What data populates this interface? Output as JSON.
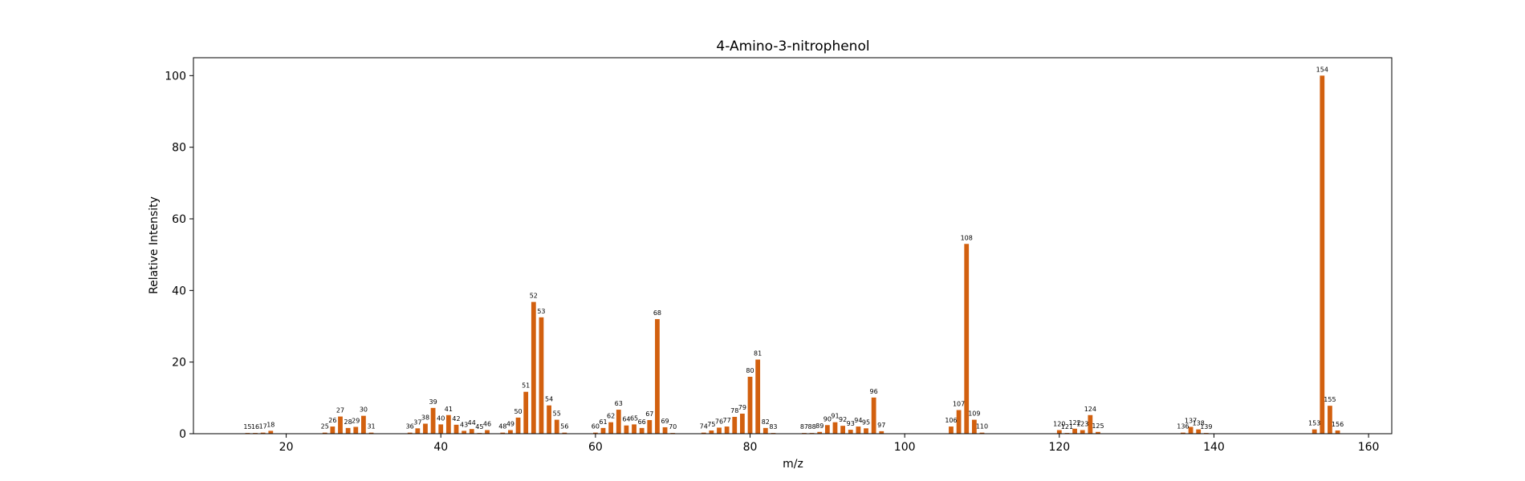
{
  "chart_data": {
    "type": "bar",
    "title": "4-Amino-3-nitrophenol",
    "xlabel": "m/z",
    "ylabel": "Relative Intensity",
    "xlim": [
      8,
      163
    ],
    "ylim": [
      0,
      105
    ],
    "xticks": [
      20,
      40,
      60,
      80,
      100,
      120,
      140,
      160
    ],
    "yticks": [
      0,
      20,
      40,
      60,
      80,
      100
    ],
    "color": "#d2600f",
    "grid": false,
    "legend": "none",
    "peaks": [
      {
        "mz": 15,
        "intensity": 0.2
      },
      {
        "mz": 16,
        "intensity": 0.2
      },
      {
        "mz": 17,
        "intensity": 0.3
      },
      {
        "mz": 18,
        "intensity": 0.8
      },
      {
        "mz": 25,
        "intensity": 0.3
      },
      {
        "mz": 26,
        "intensity": 2.0
      },
      {
        "mz": 27,
        "intensity": 4.8
      },
      {
        "mz": 28,
        "intensity": 1.6
      },
      {
        "mz": 29,
        "intensity": 1.9
      },
      {
        "mz": 30,
        "intensity": 5.0
      },
      {
        "mz": 31,
        "intensity": 0.3
      },
      {
        "mz": 36,
        "intensity": 0.3
      },
      {
        "mz": 37,
        "intensity": 1.5
      },
      {
        "mz": 38,
        "intensity": 2.8
      },
      {
        "mz": 39,
        "intensity": 7.2
      },
      {
        "mz": 40,
        "intensity": 2.6
      },
      {
        "mz": 41,
        "intensity": 5.2
      },
      {
        "mz": 42,
        "intensity": 2.5
      },
      {
        "mz": 43,
        "intensity": 0.8
      },
      {
        "mz": 44,
        "intensity": 1.3
      },
      {
        "mz": 45,
        "intensity": 0.2
      },
      {
        "mz": 46,
        "intensity": 1.0
      },
      {
        "mz": 48,
        "intensity": 0.3
      },
      {
        "mz": 49,
        "intensity": 1.0
      },
      {
        "mz": 50,
        "intensity": 4.5
      },
      {
        "mz": 51,
        "intensity": 11.7
      },
      {
        "mz": 52,
        "intensity": 36.8
      },
      {
        "mz": 53,
        "intensity": 32.5
      },
      {
        "mz": 54,
        "intensity": 7.9
      },
      {
        "mz": 55,
        "intensity": 3.9
      },
      {
        "mz": 56,
        "intensity": 0.3
      },
      {
        "mz": 60,
        "intensity": 0.3
      },
      {
        "mz": 61,
        "intensity": 1.6
      },
      {
        "mz": 62,
        "intensity": 3.2
      },
      {
        "mz": 63,
        "intensity": 6.7
      },
      {
        "mz": 64,
        "intensity": 2.3
      },
      {
        "mz": 65,
        "intensity": 2.6
      },
      {
        "mz": 66,
        "intensity": 1.6
      },
      {
        "mz": 67,
        "intensity": 3.8
      },
      {
        "mz": 68,
        "intensity": 32.0
      },
      {
        "mz": 69,
        "intensity": 1.8
      },
      {
        "mz": 70,
        "intensity": 0.2
      },
      {
        "mz": 74,
        "intensity": 0.3
      },
      {
        "mz": 75,
        "intensity": 0.9
      },
      {
        "mz": 76,
        "intensity": 1.7
      },
      {
        "mz": 77,
        "intensity": 2.0
      },
      {
        "mz": 78,
        "intensity": 4.7
      },
      {
        "mz": 79,
        "intensity": 5.6
      },
      {
        "mz": 80,
        "intensity": 15.9
      },
      {
        "mz": 81,
        "intensity": 20.7
      },
      {
        "mz": 82,
        "intensity": 1.6
      },
      {
        "mz": 83,
        "intensity": 0.2
      },
      {
        "mz": 87,
        "intensity": 0.2
      },
      {
        "mz": 88,
        "intensity": 0.2
      },
      {
        "mz": 89,
        "intensity": 0.5
      },
      {
        "mz": 90,
        "intensity": 2.4
      },
      {
        "mz": 91,
        "intensity": 3.2
      },
      {
        "mz": 92,
        "intensity": 2.2
      },
      {
        "mz": 93,
        "intensity": 1.1
      },
      {
        "mz": 94,
        "intensity": 2.0
      },
      {
        "mz": 95,
        "intensity": 1.5
      },
      {
        "mz": 96,
        "intensity": 10.1
      },
      {
        "mz": 97,
        "intensity": 0.7
      },
      {
        "mz": 106,
        "intensity": 2.0
      },
      {
        "mz": 107,
        "intensity": 6.6
      },
      {
        "mz": 108,
        "intensity": 53.0
      },
      {
        "mz": 109,
        "intensity": 3.9
      },
      {
        "mz": 110,
        "intensity": 0.3
      },
      {
        "mz": 120,
        "intensity": 1.0
      },
      {
        "mz": 121,
        "intensity": 0.2
      },
      {
        "mz": 122,
        "intensity": 1.4
      },
      {
        "mz": 123,
        "intensity": 1.0
      },
      {
        "mz": 124,
        "intensity": 5.2
      },
      {
        "mz": 125,
        "intensity": 0.5
      },
      {
        "mz": 136,
        "intensity": 0.3
      },
      {
        "mz": 137,
        "intensity": 1.9
      },
      {
        "mz": 138,
        "intensity": 1.2
      },
      {
        "mz": 139,
        "intensity": 0.2
      },
      {
        "mz": 153,
        "intensity": 1.2
      },
      {
        "mz": 154,
        "intensity": 100.0
      },
      {
        "mz": 155,
        "intensity": 7.8
      },
      {
        "mz": 156,
        "intensity": 0.9
      }
    ]
  }
}
